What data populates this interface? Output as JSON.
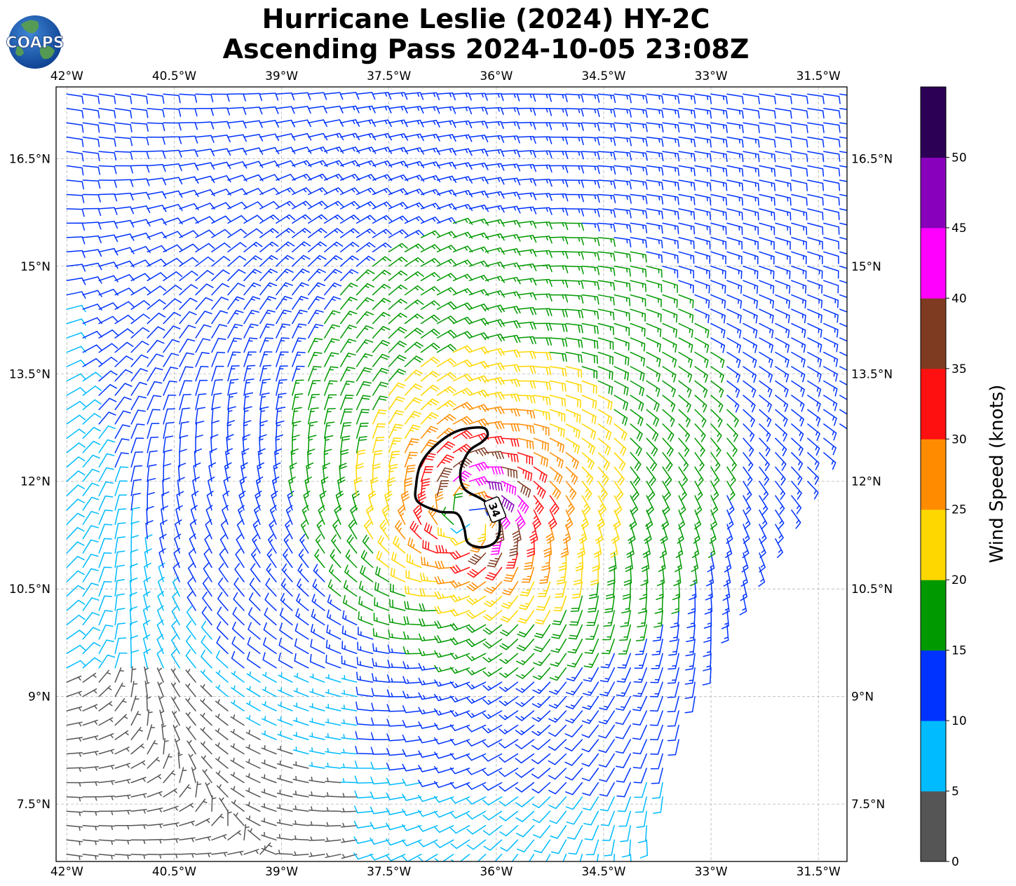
{
  "logo": {
    "text": "COAPS"
  },
  "chart_data": {
    "type": "wind-barbs",
    "title_line1": "Hurricane Leslie (2024) HY-2C",
    "title_line2": "Ascending Pass 2024-10-05 23:08Z",
    "lon_range": [
      -42.15,
      -31.1
    ],
    "lat_range": [
      6.7,
      17.5
    ],
    "lon_ticks": [
      {
        "value": -42,
        "label": "42°W"
      },
      {
        "value": -40.5,
        "label": "40.5°W"
      },
      {
        "value": -39,
        "label": "39°W"
      },
      {
        "value": -37.5,
        "label": "37.5°W"
      },
      {
        "value": -36,
        "label": "36°W"
      },
      {
        "value": -34.5,
        "label": "34.5°W"
      },
      {
        "value": -33,
        "label": "33°W"
      },
      {
        "value": -31.5,
        "label": "31.5°W"
      }
    ],
    "lat_ticks": [
      {
        "value": 16.5,
        "label": "16.5°N"
      },
      {
        "value": 15,
        "label": "15°N"
      },
      {
        "value": 13.5,
        "label": "13.5°N"
      },
      {
        "value": 12,
        "label": "12°N"
      },
      {
        "value": 10.5,
        "label": "10.5°N"
      },
      {
        "value": 9,
        "label": "9°N"
      },
      {
        "value": 7.5,
        "label": "7.5°N"
      }
    ],
    "storm_center": {
      "lon": -36.4,
      "lat": 11.5
    },
    "max_wind_knots": 42,
    "contour": {
      "level_label": "34",
      "units": "knots",
      "outline": [
        [
          -36.2,
          12.75
        ],
        [
          -36.55,
          12.7
        ],
        [
          -36.85,
          12.5
        ],
        [
          -37.05,
          12.25
        ],
        [
          -37.12,
          11.95
        ],
        [
          -37.1,
          11.72
        ],
        [
          -36.8,
          11.58
        ],
        [
          -36.55,
          11.55
        ],
        [
          -36.45,
          11.35
        ],
        [
          -36.4,
          11.15
        ],
        [
          -36.22,
          11.08
        ],
        [
          -36.02,
          11.15
        ],
        [
          -35.95,
          11.35
        ],
        [
          -36.0,
          11.6
        ],
        [
          -36.2,
          11.75
        ],
        [
          -36.45,
          11.9
        ],
        [
          -36.5,
          12.15
        ],
        [
          -36.38,
          12.42
        ],
        [
          -36.2,
          12.55
        ],
        [
          -36.12,
          12.65
        ]
      ]
    },
    "swath_boundary": [
      [
        -42.2,
        17.5
      ],
      [
        -31.1,
        17.5
      ],
      [
        -31.1,
        12.9
      ],
      [
        -31.7,
        11.9
      ],
      [
        -32.3,
        10.8
      ],
      [
        -32.9,
        9.6
      ],
      [
        -33.4,
        8.4
      ],
      [
        -33.8,
        7.2
      ],
      [
        -33.95,
        6.7
      ],
      [
        -42.2,
        6.7
      ]
    ],
    "colorbar": {
      "label": "Wind Speed (knots)",
      "bins": [
        {
          "min": 0,
          "max": 5,
          "color": "#555555"
        },
        {
          "min": 5,
          "max": 10,
          "color": "#00bbff"
        },
        {
          "min": 10,
          "max": 15,
          "color": "#0033ff"
        },
        {
          "min": 15,
          "max": 20,
          "color": "#009900"
        },
        {
          "min": 20,
          "max": 25,
          "color": "#ffd700"
        },
        {
          "min": 25,
          "max": 30,
          "color": "#ff8c00"
        },
        {
          "min": 30,
          "max": 35,
          "color": "#ff1010"
        },
        {
          "min": 35,
          "max": 40,
          "color": "#7e3b22"
        },
        {
          "min": 40,
          "max": 45,
          "color": "#ff00ff"
        },
        {
          "min": 45,
          "max": 50,
          "color": "#8800bb"
        },
        {
          "min": 50,
          "max": 55,
          "color": "#2b0055"
        }
      ],
      "ticks": [
        0,
        5,
        10,
        15,
        20,
        25,
        30,
        35,
        40,
        45,
        50
      ]
    }
  }
}
